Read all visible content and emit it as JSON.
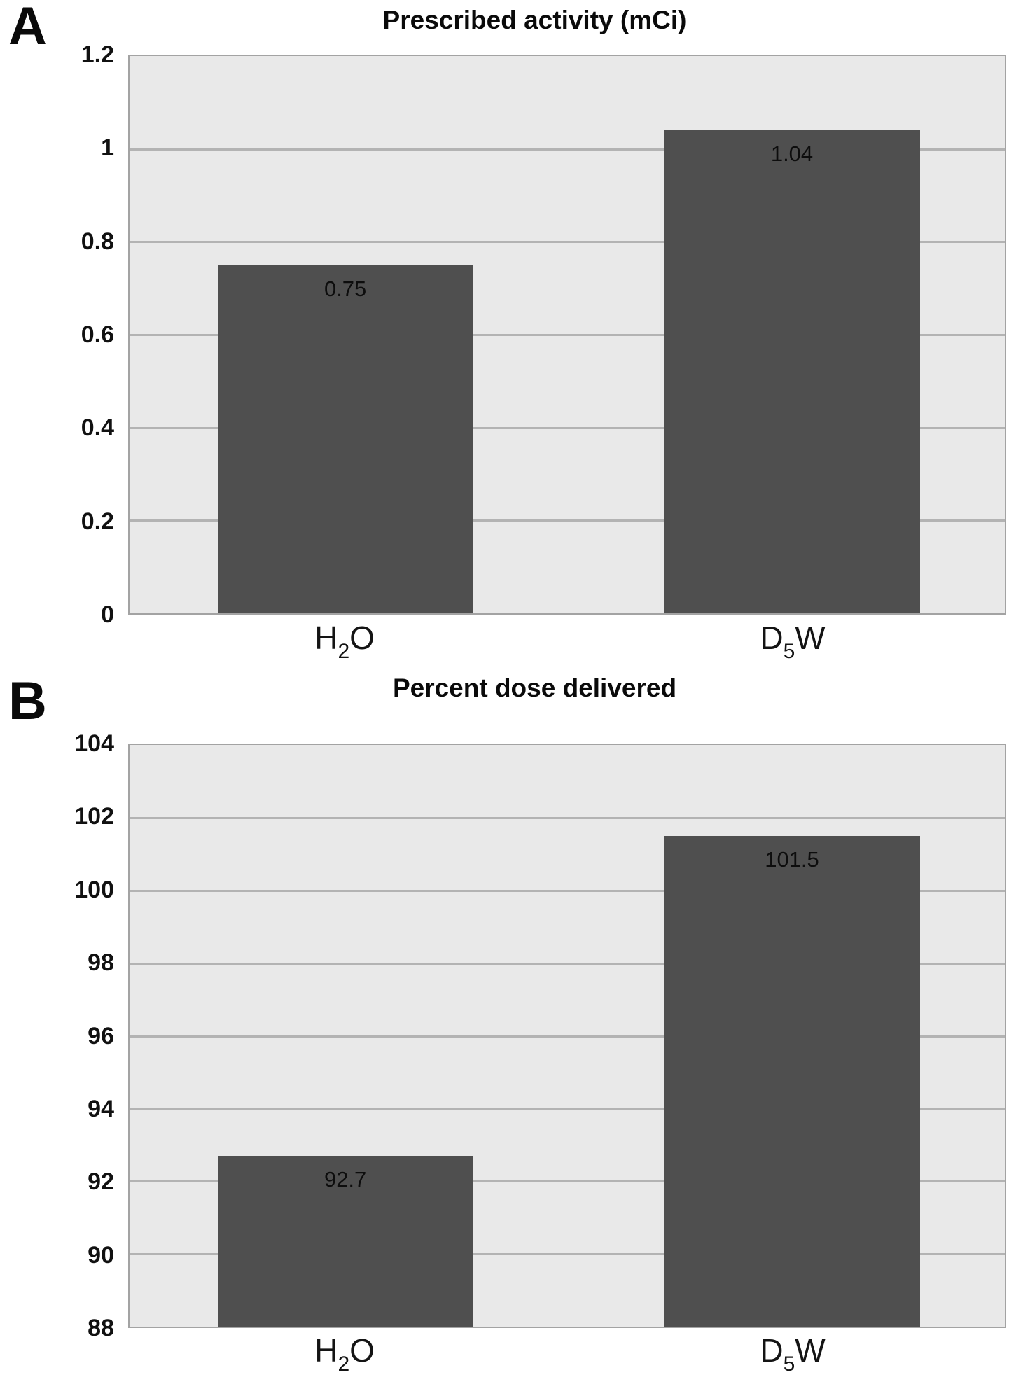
{
  "style": {
    "page_bg": "#ffffff",
    "plot_bg": "#e9e9e9",
    "gridline_color": "#b3b3b3",
    "axis_border_color": "#a3a3a3",
    "bar_color": "#4f4f4f",
    "text_color": "#0d0d0d"
  },
  "chart_data": [
    {
      "type": "bar",
      "panel_label": "A",
      "title": "Prescribed activity (mCi)",
      "categories": [
        "H₂O",
        "D₅W"
      ],
      "categories_rich": [
        {
          "base": "H",
          "sub": "2",
          "rest": "O"
        },
        {
          "base": "D",
          "sub": "5",
          "rest": "W"
        }
      ],
      "values": [
        0.75,
        1.04
      ],
      "bar_value_labels": [
        "0.75",
        "1.04"
      ],
      "ylim": [
        0,
        1.2
      ],
      "ytick_labels": [
        "1.2",
        "1",
        "0.8",
        "0.6",
        "0.4",
        "0.2",
        "0"
      ],
      "grid": true,
      "legend": null,
      "xlabel": "",
      "ylabel": ""
    },
    {
      "type": "bar",
      "panel_label": "B",
      "title": "Percent dose delivered",
      "categories": [
        "H₂O",
        "D₅W"
      ],
      "categories_rich": [
        {
          "base": "H",
          "sub": "2",
          "rest": "O"
        },
        {
          "base": "D",
          "sub": "5",
          "rest": "W"
        }
      ],
      "values": [
        92.7,
        101.5
      ],
      "bar_value_labels": [
        "92.7",
        "101.5"
      ],
      "ylim": [
        88,
        104
      ],
      "ytick_labels": [
        "104",
        "102",
        "100",
        "98",
        "96",
        "94",
        "92",
        "90",
        "88"
      ],
      "grid": true,
      "legend": null,
      "xlabel": "",
      "ylabel": ""
    }
  ]
}
